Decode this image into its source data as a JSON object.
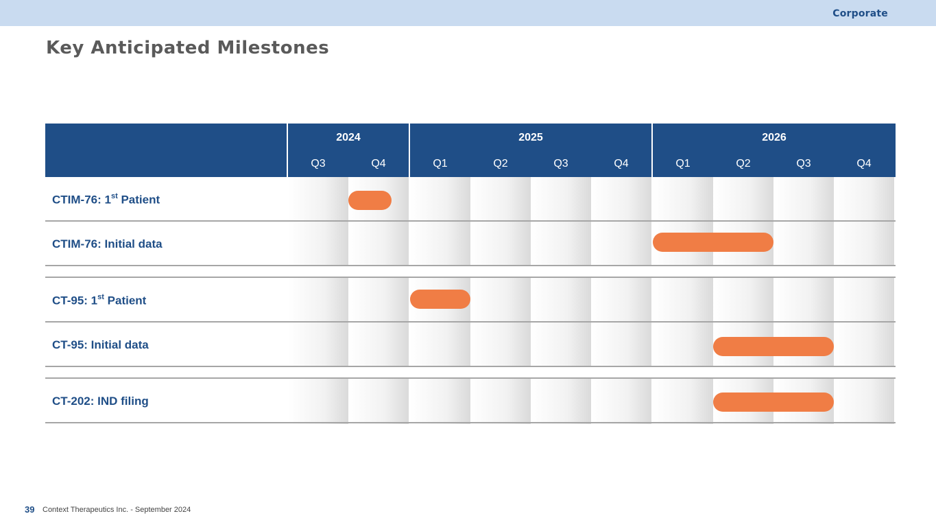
{
  "header": {
    "section": "Corporate"
  },
  "title": "Key Anticipated Milestones",
  "timeline": {
    "years": [
      {
        "label": "2024",
        "quarters": [
          "Q3",
          "Q4"
        ]
      },
      {
        "label": "2025",
        "quarters": [
          "Q1",
          "Q2",
          "Q3",
          "Q4"
        ]
      },
      {
        "label": "2026",
        "quarters": [
          "Q1",
          "Q2",
          "Q3",
          "Q4"
        ]
      }
    ]
  },
  "milestones": [
    {
      "label_pre": "CTIM-76: 1",
      "label_sup": "st",
      "label_post": " Patient",
      "bar_start_quarter": "2024-Q4",
      "bar_end_quarter": "2024-Q4"
    },
    {
      "label_pre": "CTIM-76: Initial data",
      "label_sup": "",
      "label_post": "",
      "bar_start_quarter": "2026-Q1",
      "bar_end_quarter": "2026-Q2"
    },
    {
      "label_pre": "CT-95: 1",
      "label_sup": "st",
      "label_post": " Patient",
      "bar_start_quarter": "2025-Q1",
      "bar_end_quarter": "2025-Q1"
    },
    {
      "label_pre": "CT-95: Initial data",
      "label_sup": "",
      "label_post": "",
      "bar_start_quarter": "2026-Q2",
      "bar_end_quarter": "2026-Q3"
    },
    {
      "label_pre": "CT-202: IND filing",
      "label_sup": "",
      "label_post": "",
      "bar_start_quarter": "2026-Q2",
      "bar_end_quarter": "2026-Q3"
    }
  ],
  "colors": {
    "header_blue": "#1f4e87",
    "bar_orange": "#f07d45",
    "topbar": "#c9dbf0"
  },
  "footer": {
    "page_number": "39",
    "text": "Context Therapeutics Inc. -  September 2024"
  }
}
